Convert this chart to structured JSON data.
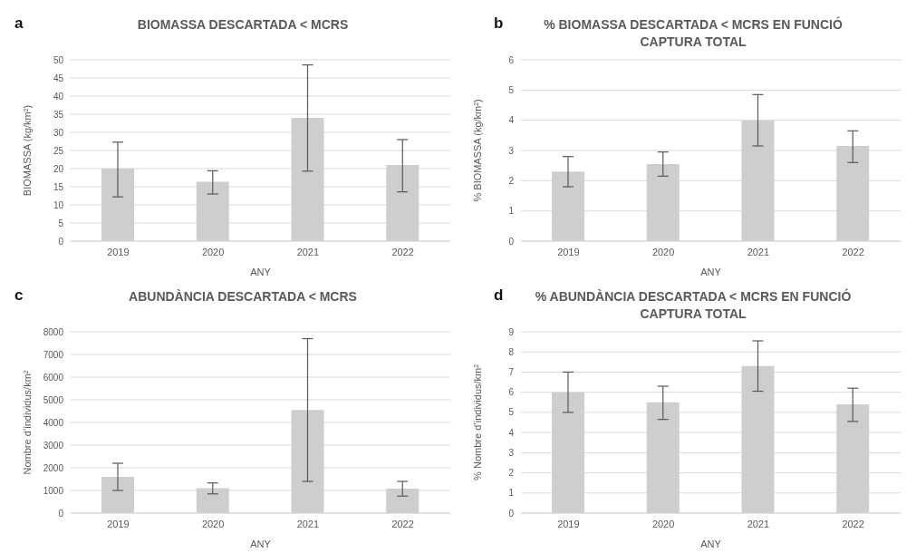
{
  "chart_data": [
    {
      "type": "bar",
      "title": "BIOMASSA DESCARTADA < MCRS",
      "annotations": [
        "a"
      ],
      "xlabel": "ANY",
      "ylabel": "BIOMASSA (kg/km²)",
      "categories": [
        "2019",
        "2020",
        "2021",
        "2022"
      ],
      "color": "#cfcdcd",
      "values": [
        20,
        16.4,
        34,
        21
      ],
      "errors": [
        [
          12.2,
          27.3
        ],
        [
          13,
          19.4
        ],
        [
          19.3,
          48.6
        ],
        [
          13.6,
          28
        ]
      ],
      "ylim": [
        0,
        50
      ],
      "yticks": [
        0,
        5,
        10,
        15,
        20,
        25,
        30,
        35,
        40,
        45,
        50
      ],
      "grid": "y"
    },
    {
      "type": "bar",
      "title": "% BIOMASSA DESCARTADA < MCRS EN FUNCIÓ CAPTURA TOTAL",
      "annotations": [
        "b"
      ],
      "xlabel": "ANY",
      "ylabel": "% BIOMASSA (kg/km²)",
      "categories": [
        "2019",
        "2020",
        "2021",
        "2022"
      ],
      "color": "#cfcdcd",
      "values": [
        2.3,
        2.55,
        4.0,
        3.15
      ],
      "errors": [
        [
          1.8,
          2.8
        ],
        [
          2.15,
          2.95
        ],
        [
          3.15,
          4.85
        ],
        [
          2.6,
          3.65
        ]
      ],
      "ylim": [
        0,
        6
      ],
      "yticks": [
        0,
        1,
        2,
        3,
        4,
        5,
        6
      ],
      "grid": "y"
    },
    {
      "type": "bar",
      "title": "ABUNDÀNCIA DESCARTADA < MCRS",
      "annotations": [
        "c"
      ],
      "xlabel": "ANY",
      "ylabel": "Nombre d’individus/km²",
      "categories": [
        "2019",
        "2020",
        "2021",
        "2022"
      ],
      "color": "#cfcdcd",
      "values": [
        1600,
        1100,
        4550,
        1080
      ],
      "errors": [
        [
          1000,
          2200
        ],
        [
          850,
          1330
        ],
        [
          1400,
          7700
        ],
        [
          750,
          1400
        ]
      ],
      "ylim": [
        0,
        8000
      ],
      "yticks": [
        0,
        1000,
        2000,
        3000,
        4000,
        5000,
        6000,
        7000,
        8000
      ],
      "grid": "y"
    },
    {
      "type": "bar",
      "title": "% ABUNDÀNCIA DESCARTADA < MCRS EN FUNCIÓ CAPTURA TOTAL",
      "annotations": [
        "d"
      ],
      "xlabel": "ANY",
      "ylabel": "% Nombre d’individus/km²",
      "categories": [
        "2019",
        "2020",
        "2021",
        "2022"
      ],
      "color": "#cfcdcd",
      "values": [
        6.0,
        5.5,
        7.3,
        5.4
      ],
      "errors": [
        [
          5.0,
          7.0
        ],
        [
          4.65,
          6.3
        ],
        [
          6.05,
          8.55
        ],
        [
          4.55,
          6.2
        ]
      ],
      "ylim": [
        0,
        9
      ],
      "yticks": [
        0,
        1,
        2,
        3,
        4,
        5,
        6,
        7,
        8,
        9
      ],
      "grid": "y"
    }
  ]
}
